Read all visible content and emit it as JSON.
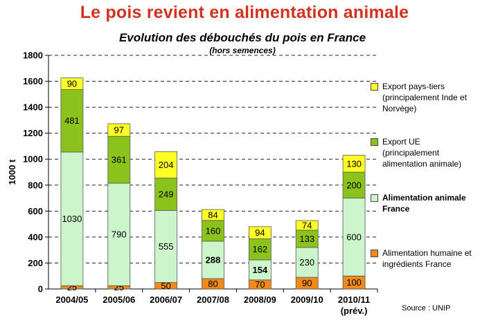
{
  "header": {
    "title": "Le pois revient en alimentation animale"
  },
  "chart_data": {
    "type": "bar",
    "stacked": true,
    "title": "Evolution des débouchés du pois en France",
    "subtitle": "(hors semences)",
    "ylabel": "1000 t",
    "xlabel": "",
    "ylim": [
      0,
      1800
    ],
    "ytick_step": 200,
    "yticks": [
      "0",
      "200",
      "400",
      "600",
      "800",
      "1000",
      "1200",
      "1400",
      "1600",
      "1800"
    ],
    "grid": "horizontal dashed",
    "legend_position": "right",
    "categories": [
      "2004/05",
      "2005/06",
      "2006/07",
      "2007/08",
      "2008/09",
      "2009/10",
      "2010/11\n(prév.)"
    ],
    "series": [
      {
        "name": "Alimentation humaine et ingrédients France",
        "color": "#f08a1a",
        "values": [
          25,
          25,
          50,
          80,
          70,
          90,
          100
        ]
      },
      {
        "name": "Alimentation animale France",
        "color": "#ccf5cc",
        "values": [
          1030,
          790,
          555,
          288,
          154,
          230,
          600
        ]
      },
      {
        "name": "Export UE (principalement alimentation animale)",
        "color": "#8cc21c",
        "values": [
          481,
          361,
          249,
          160,
          162,
          133,
          200
        ]
      },
      {
        "name": "Export pays-tiers (principalement Inde et Norvège)",
        "color": "#ffff26",
        "values": [
          90,
          97,
          204,
          84,
          94,
          74,
          130
        ]
      }
    ],
    "bold_labels": [
      [
        false,
        false,
        false,
        false,
        false,
        false,
        false
      ],
      [
        false,
        false,
        false,
        true,
        true,
        false,
        false
      ],
      [
        false,
        false,
        false,
        false,
        false,
        false,
        false
      ],
      [
        false,
        false,
        false,
        false,
        false,
        false,
        false
      ]
    ]
  },
  "legend": {
    "items": [
      {
        "lines": [
          "Export pays-tiers",
          "(principalement Inde et",
          "Norvège)"
        ],
        "color": "#ffff26",
        "bold": false
      },
      {
        "lines": [
          "Export UE",
          "(principalement",
          "alimentation animale)"
        ],
        "color": "#8cc21c",
        "bold": false
      },
      {
        "lines": [
          "Alimentation animale",
          "France"
        ],
        "color": "#ccf5cc",
        "bold": true
      },
      {
        "lines": [
          "Alimentation humaine et",
          "ingrédients France"
        ],
        "color": "#f08a1a",
        "bold": false
      }
    ]
  },
  "source": "Source : UNIP"
}
